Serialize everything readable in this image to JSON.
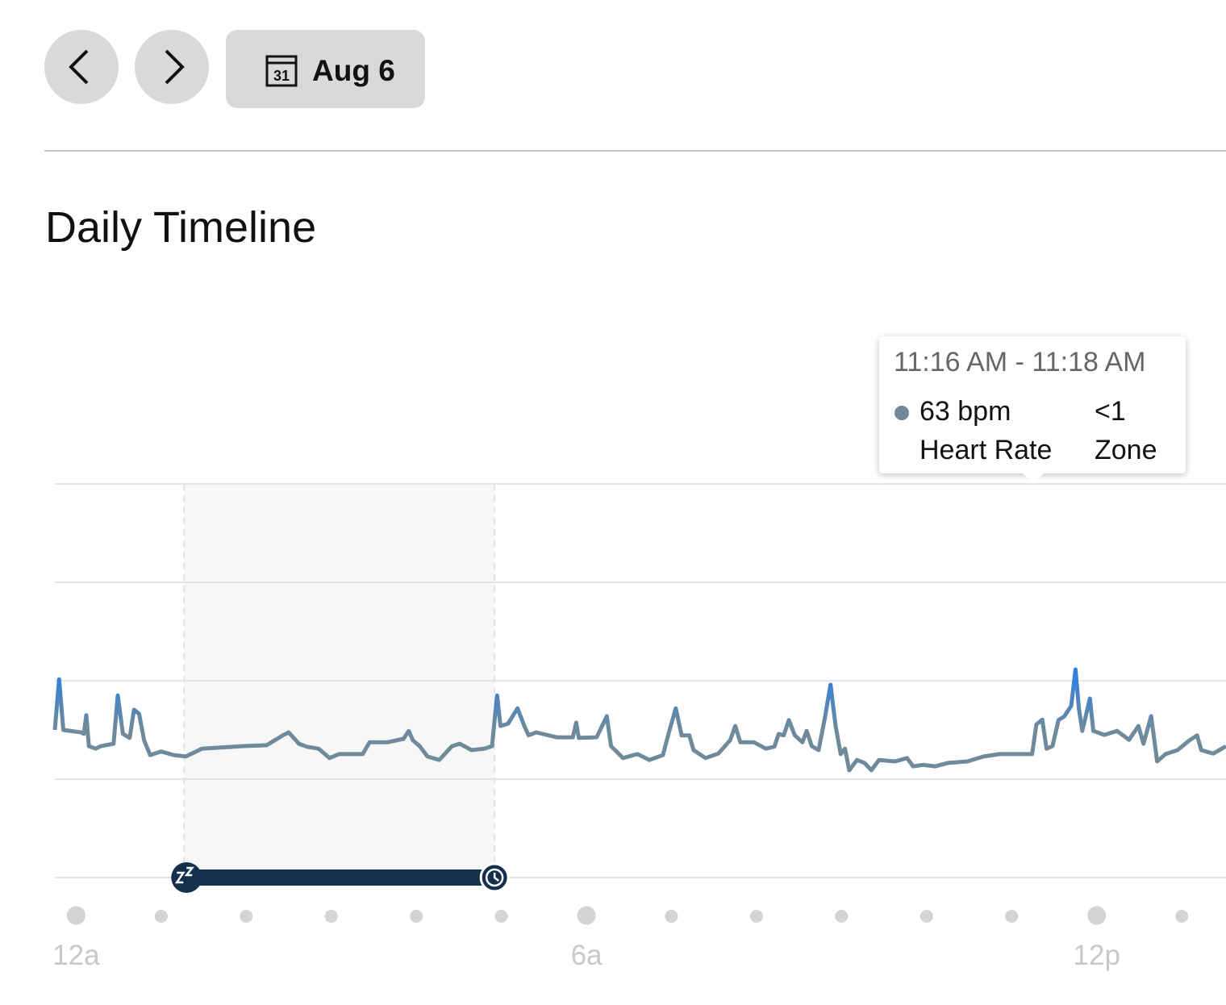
{
  "header": {
    "calendar_day": "31",
    "date": "Aug 6"
  },
  "title": "Daily Timeline",
  "tooltip": {
    "time_range": "11:16 AM - 11:18 AM",
    "value": "63 bpm",
    "label": "Heart Rate",
    "zone_value": "<1",
    "zone_label": "Zone"
  },
  "chart_data": {
    "type": "line",
    "color": "#6f8b9b",
    "peak_color": "#2c7fe3",
    "grid": true,
    "xlim": [
      -0.25,
      13.52
    ],
    "xticks": [
      {
        "value": 0,
        "label": "12a"
      },
      {
        "value": 6,
        "label": "6a"
      },
      {
        "value": 12,
        "label": "12p"
      }
    ],
    "ylim": [
      40,
      120
    ],
    "yticks": [
      40,
      60,
      80,
      100,
      120
    ],
    "sleep": {
      "start": 1.27,
      "end": 4.92
    },
    "x": [
      -0.25,
      -0.2,
      -0.15,
      0.06,
      0.09,
      0.12,
      0.15,
      0.23,
      0.29,
      0.44,
      0.49,
      0.55,
      0.63,
      0.68,
      0.74,
      0.8,
      0.87,
      1.0,
      1.15,
      1.29,
      1.48,
      1.95,
      2.24,
      2.43,
      2.5,
      2.62,
      2.71,
      2.85,
      2.98,
      3.09,
      3.37,
      3.45,
      3.66,
      3.85,
      3.91,
      3.96,
      4.04,
      4.13,
      4.27,
      4.42,
      4.51,
      4.65,
      4.8,
      4.89,
      4.95,
      4.99,
      5.08,
      5.19,
      5.27,
      5.32,
      5.41,
      5.65,
      5.84,
      5.88,
      5.91,
      6.12,
      6.24,
      6.29,
      6.43,
      6.6,
      6.74,
      6.9,
      6.96,
      7.05,
      7.12,
      7.21,
      7.26,
      7.4,
      7.55,
      7.69,
      7.75,
      7.81,
      7.97,
      8.11,
      8.21,
      8.26,
      8.32,
      8.38,
      8.45,
      8.54,
      8.59,
      8.65,
      8.73,
      8.8,
      8.87,
      8.93,
      8.99,
      9.04,
      9.09,
      9.18,
      9.27,
      9.35,
      9.44,
      9.63,
      9.77,
      9.84,
      9.96,
      10.1,
      10.25,
      10.48,
      10.67,
      10.86,
      11.24,
      11.29,
      11.36,
      11.41,
      11.48,
      11.55,
      11.62,
      11.7,
      11.75,
      11.79,
      11.83,
      11.92,
      11.96,
      12.09,
      12.24,
      12.38,
      12.49,
      12.55,
      12.64,
      12.71,
      12.81,
      12.95,
      13.09,
      13.18,
      13.23,
      13.37,
      13.52
    ],
    "values": [
      70.0,
      80.3,
      70.0,
      69.5,
      69.2,
      73.0,
      66.7,
      66.2,
      66.7,
      67.2,
      77.0,
      69.2,
      68.4,
      74.1,
      73.3,
      67.9,
      64.9,
      65.6,
      64.9,
      64.6,
      66.2,
      66.7,
      66.9,
      68.9,
      69.5,
      67.2,
      66.6,
      66.2,
      64.3,
      65.1,
      65.1,
      67.5,
      67.5,
      68.2,
      69.8,
      67.9,
      66.7,
      64.6,
      63.9,
      66.7,
      67.2,
      65.9,
      66.2,
      66.7,
      77.0,
      70.8,
      71.3,
      74.4,
      70.8,
      68.9,
      69.5,
      68.5,
      68.5,
      71.5,
      68.4,
      68.5,
      72.8,
      66.7,
      64.3,
      65.1,
      63.9,
      64.9,
      68.9,
      74.4,
      68.9,
      68.9,
      65.9,
      64.3,
      65.2,
      67.9,
      70.8,
      67.5,
      67.5,
      66.2,
      66.6,
      69.2,
      68.9,
      72.0,
      68.9,
      67.5,
      69.8,
      66.7,
      65.9,
      72.1,
      79.2,
      70.8,
      65.1,
      66.2,
      61.8,
      63.9,
      63.3,
      61.8,
      63.9,
      63.6,
      64.3,
      62.6,
      62.9,
      62.6,
      63.3,
      63.6,
      64.6,
      65.1,
      65.1,
      71.1,
      72.1,
      66.2,
      66.7,
      72.0,
      72.8,
      74.9,
      82.3,
      74.4,
      69.8,
      76.4,
      69.8,
      69.0,
      69.8,
      68.0,
      70.8,
      67.2,
      72.8,
      63.6,
      65.1,
      65.9,
      67.9,
      68.9,
      65.9,
      65.2,
      66.7
    ]
  }
}
